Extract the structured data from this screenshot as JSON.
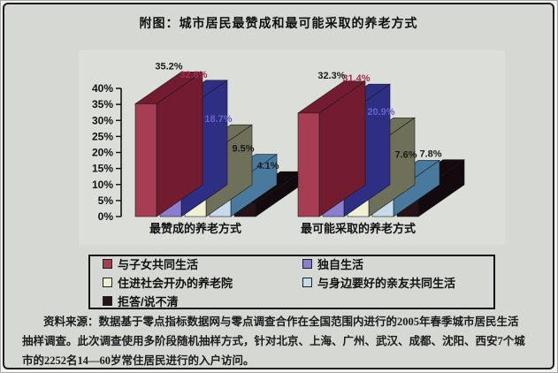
{
  "figure": {
    "title": "附图：城市居民最赞成和最可能采取的养老方式",
    "source_note": {
      "lines": [
        "资料来源：数据基于零点指标数据网与零点调查合作在全国范围内进行的2005年春季城市居民生活",
        "抽样调查。此次调查使用多阶段随机抽样方式，针对北京、上海、广州、武汉、成都、沈阳、西安7个城",
        "市的2252名14—60岁常住居民进行的入户访问。"
      ]
    },
    "colors": {
      "background": "#d6d8d3",
      "frame": "#1f1f1f",
      "text": "#111111"
    }
  },
  "chart_data": {
    "type": "bar",
    "style": "3d-grouped",
    "title": "附图：城市居民最赞成和最可能采取的养老方式",
    "categories": [
      "最赞成的养老方式",
      "最可能采取的养老方式"
    ],
    "series": [
      {
        "name": "与子女共同生活",
        "values": [
          35.2,
          32.3
        ],
        "labels": [
          "35.2%",
          "32.3%"
        ],
        "front_color": "#a63d54",
        "shade_color": "#731c30",
        "label_color": "#1b1b1b"
      },
      {
        "name": "独自生活",
        "values": [
          32.6,
          31.4
        ],
        "labels": [
          "32.6%",
          "31.4%"
        ],
        "front_color": "#8b7ed0",
        "shade_color": "#2e2e85",
        "label_color": "#a03052"
      },
      {
        "name": "住进社会开办的养老院",
        "values": [
          18.7,
          20.9
        ],
        "labels": [
          "18.7%",
          "20.9%"
        ],
        "front_color": "#f0f0d4",
        "shade_color": "#6f7059",
        "label_color": "#6a62c8"
      },
      {
        "name": "与身边要好的亲友共同生活",
        "values": [
          9.5,
          7.6
        ],
        "labels": [
          "9.5%",
          "7.6%"
        ],
        "front_color": "#c5dbec",
        "shade_color": "#497a9e",
        "label_color": "#1b1b1b"
      },
      {
        "name": "拒答/说不清",
        "values": [
          4.1,
          7.8
        ],
        "labels": [
          "4.1%",
          "7.8%"
        ],
        "front_color": "#251319",
        "shade_color": "#120a0e",
        "label_color": "#1b1b1b"
      }
    ],
    "xlabel": "",
    "ylabel": "",
    "ylim": [
      0,
      40
    ],
    "ytick_step": 5,
    "ytick_labels": [
      "0%",
      "5%",
      "10%",
      "15%",
      "20%",
      "25%",
      "30%",
      "35%",
      "40%"
    ],
    "grid": false,
    "legend_position": "bottom-box"
  }
}
